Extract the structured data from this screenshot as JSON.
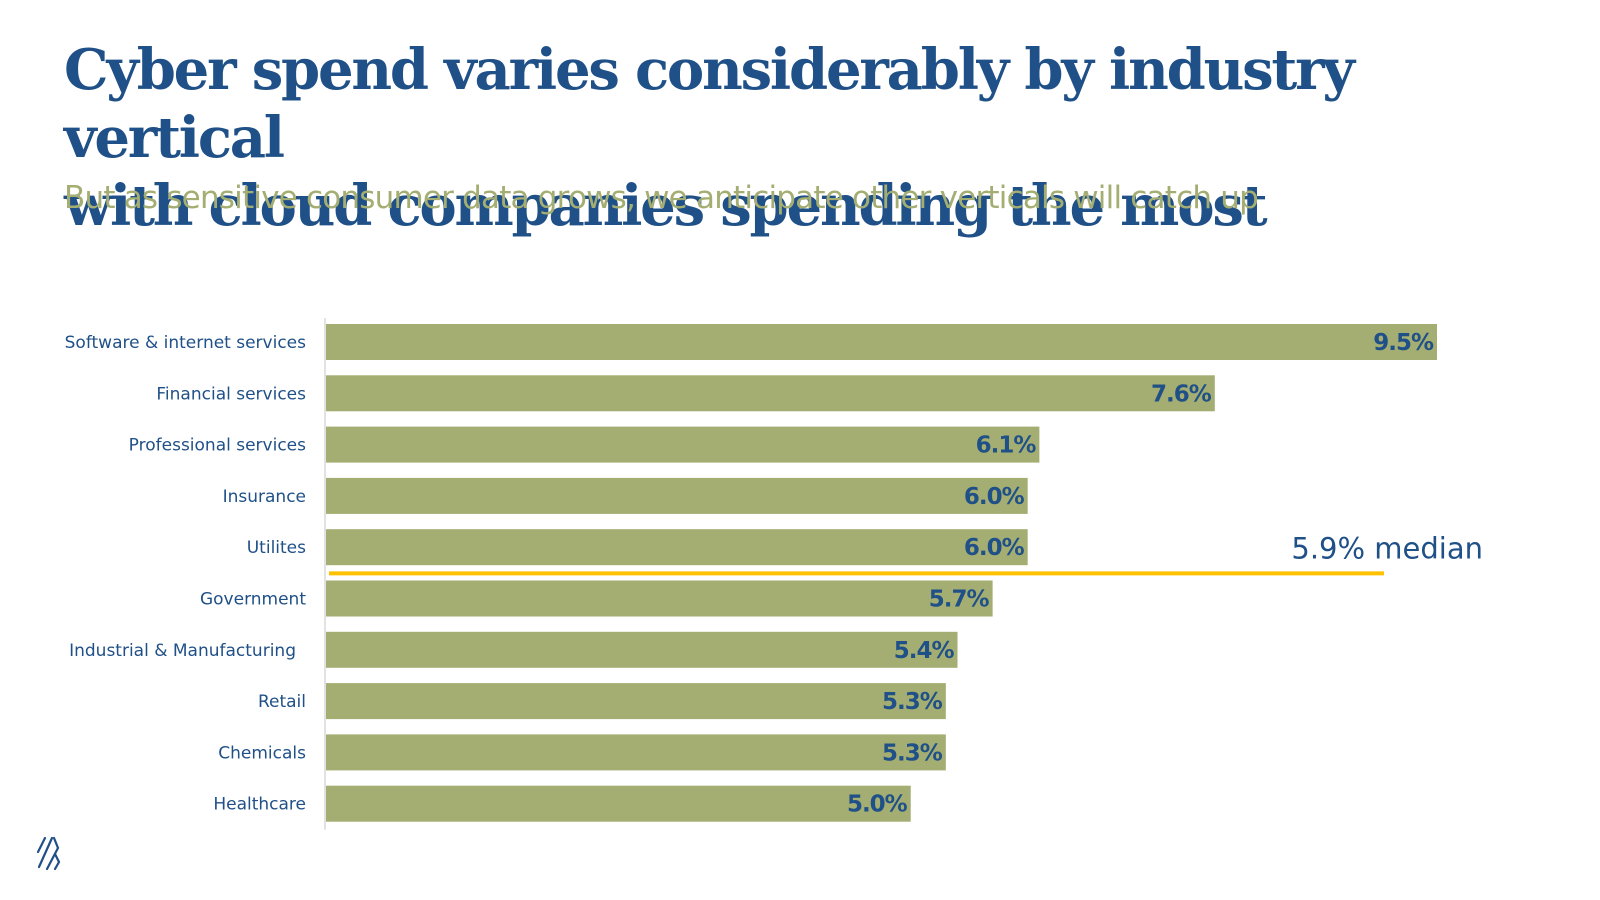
{
  "header": {
    "title_line1": "Cyber spend varies considerably by industry vertical",
    "title_line2": "with cloud companies spending the most",
    "subtitle": "But as sensitive consumer data grows, we anticipate other verticals will catch up"
  },
  "colors": {
    "title": "#1F5087",
    "subtitle": "#A5AE72",
    "bar": "#A5AE72",
    "value_label": "#1F5087",
    "median_line": "#FFC000",
    "axis": "#D9D9D9"
  },
  "chart_data": {
    "type": "bar",
    "orientation": "horizontal",
    "title": "Cyber spend varies considerably by industry vertical with cloud companies spending the most",
    "subtitle": "But as sensitive consumer data grows, we anticipate other verticals will catch up",
    "xlabel": "",
    "ylabel": "",
    "unit": "%",
    "grid": false,
    "xlim": [
      0,
      9.5
    ],
    "categories": [
      "Software & internet services",
      "Financial services",
      "Professional services",
      "Insurance",
      "Utilites",
      "Government",
      "Industrial & Manufacturing",
      "Retail",
      "Chemicals",
      "Healthcare"
    ],
    "values": [
      9.5,
      7.6,
      6.1,
      6.0,
      6.0,
      5.7,
      5.4,
      5.3,
      5.3,
      5.0
    ],
    "value_labels": [
      "9.5%",
      "7.6%",
      "6.1%",
      "6.0%",
      "6.0%",
      "5.7%",
      "5.4%",
      "5.3%",
      "5.3%",
      "5.0%"
    ],
    "reference_line": {
      "value": 5.9,
      "label": "5.9% median",
      "position": "between Utilites and Government"
    }
  },
  "footer": {
    "logo_icon": "brand-stripes-logo-icon"
  }
}
